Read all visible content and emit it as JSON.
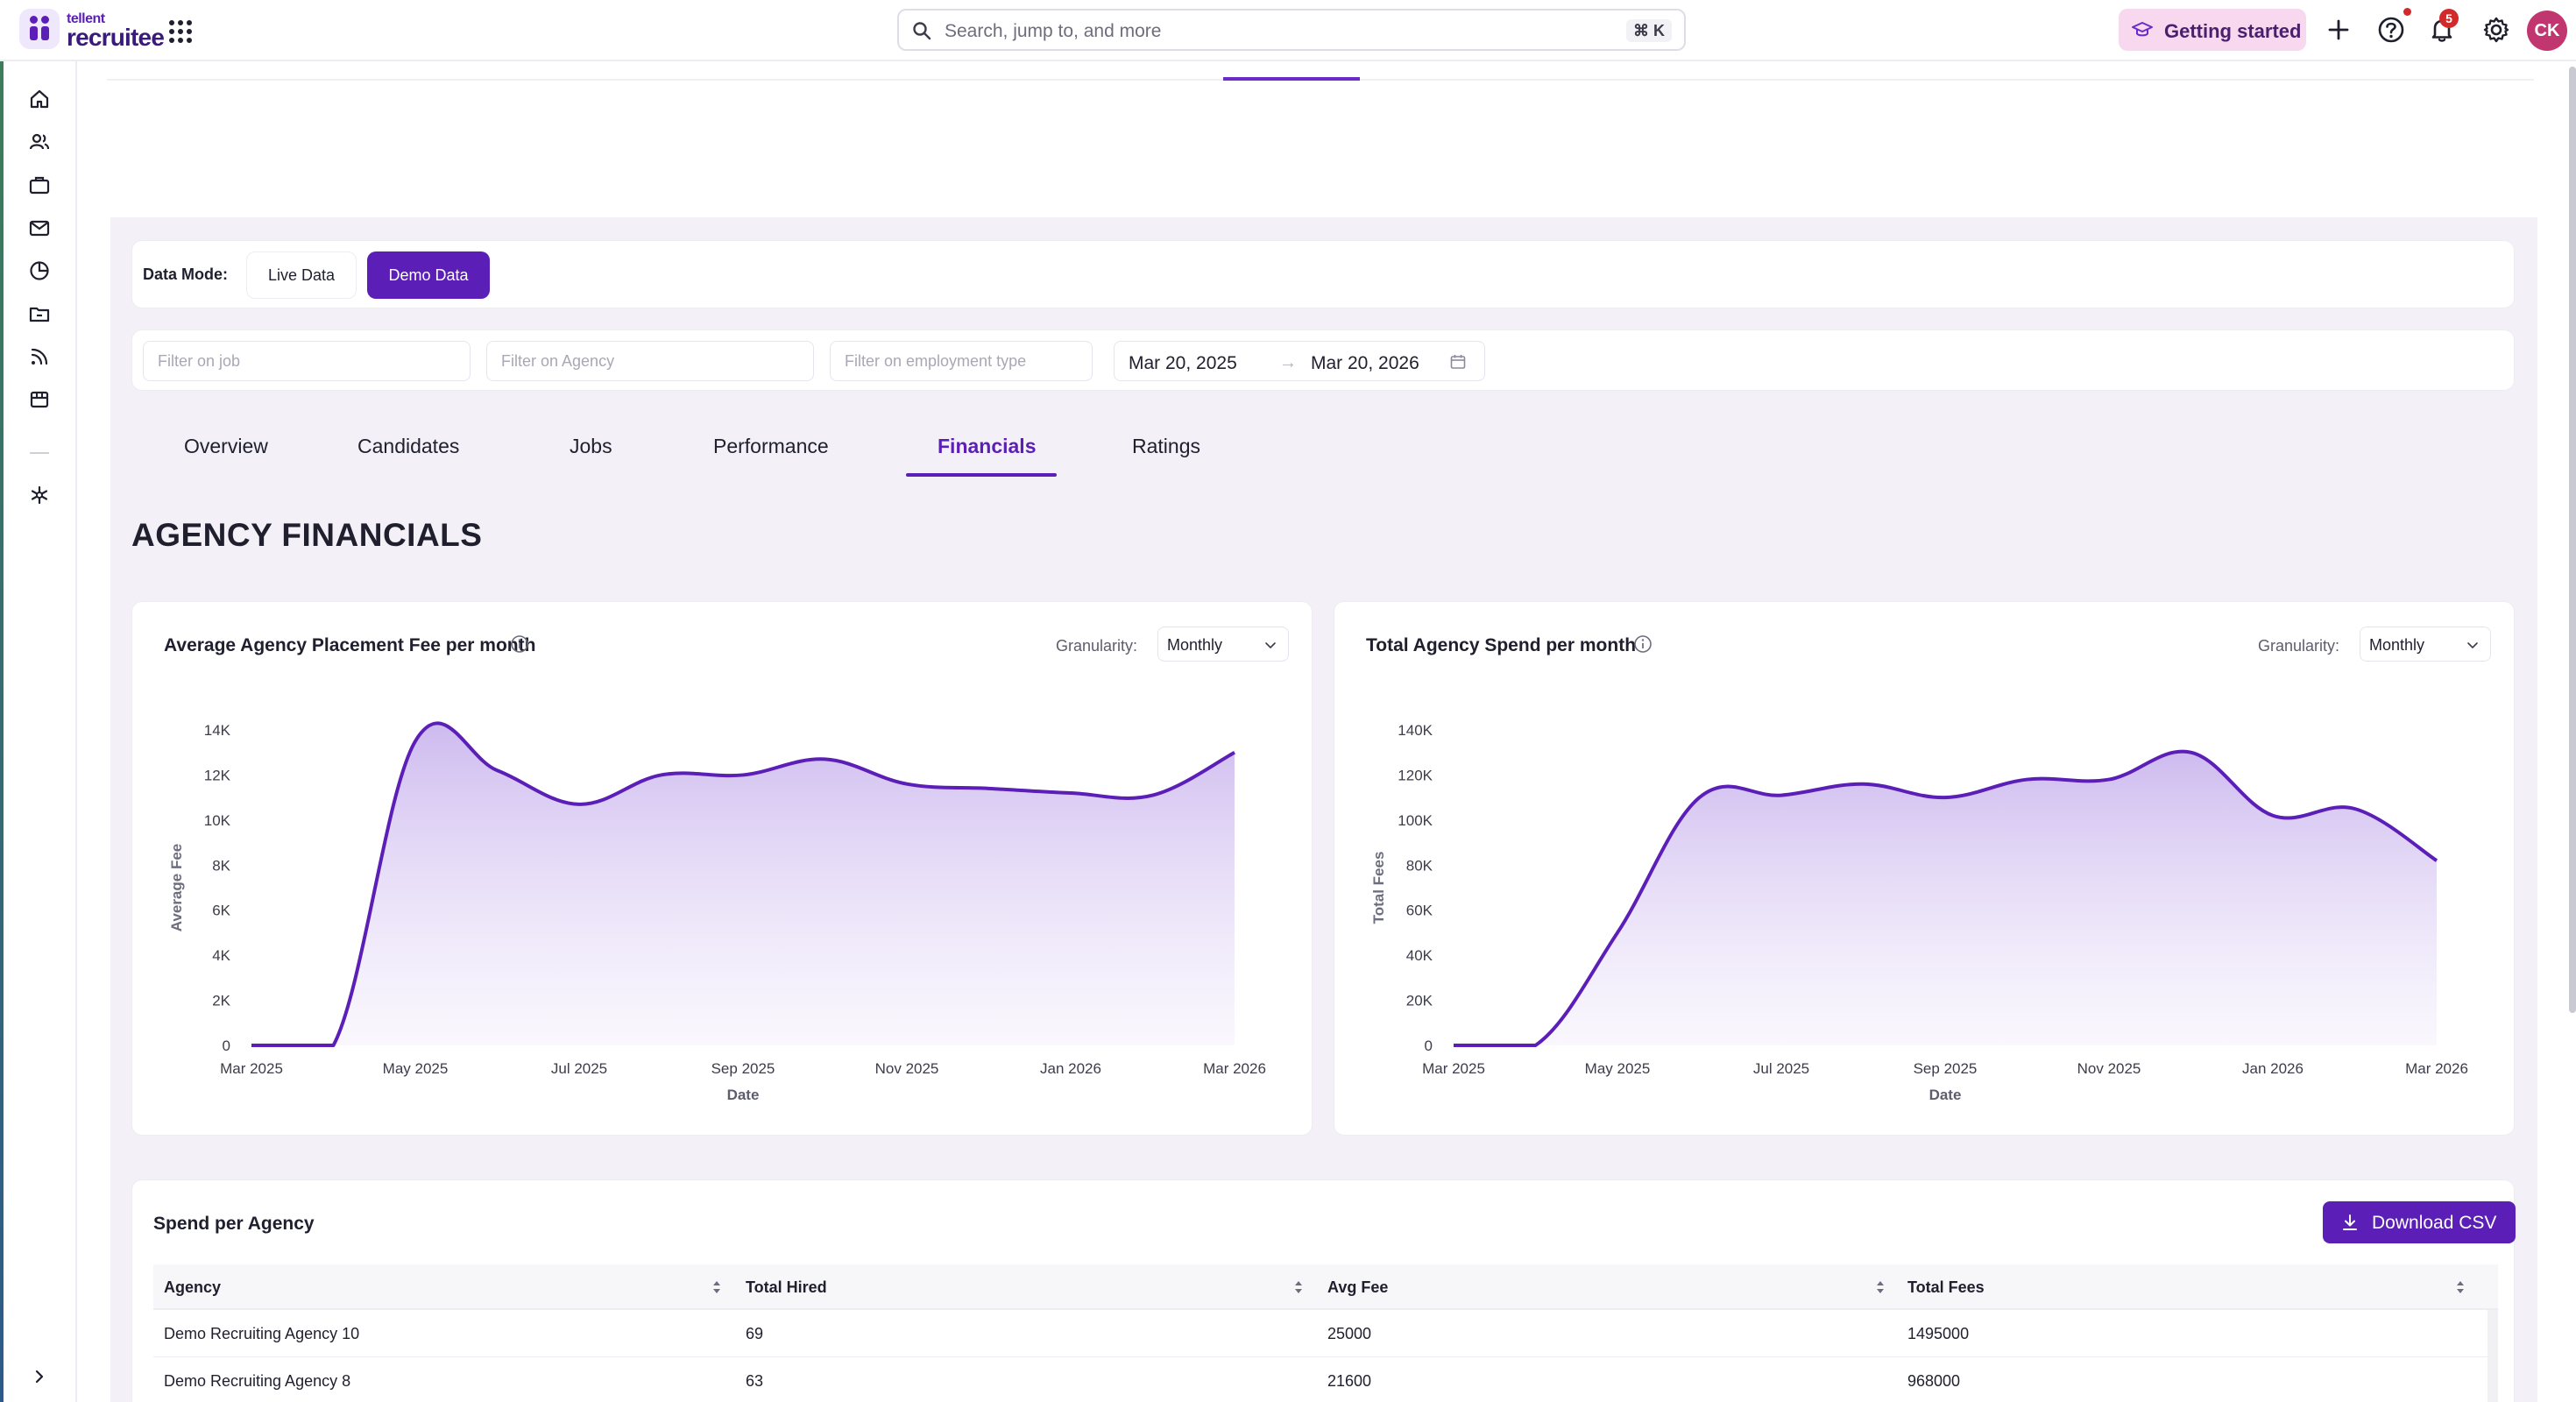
{
  "brand": {
    "top": "tellent",
    "main": "recruitee"
  },
  "search": {
    "placeholder": "Search, jump to, and more",
    "shortcut": "⌘ K"
  },
  "header": {
    "getting_started": "Getting started",
    "notifications_count": "5",
    "avatar_initials": "CK"
  },
  "data_mode": {
    "label": "Data Mode:",
    "live": "Live Data",
    "demo": "Demo Data",
    "selected": "Demo Data"
  },
  "filters": {
    "job_placeholder": "Filter on job",
    "agency_placeholder": "Filter on Agency",
    "employment_placeholder": "Filter on employment type",
    "date_from": "Mar 20, 2025",
    "date_to": "Mar 20, 2026"
  },
  "tabs": [
    {
      "label": "Overview"
    },
    {
      "label": "Candidates"
    },
    {
      "label": "Jobs"
    },
    {
      "label": "Performance"
    },
    {
      "label": "Financials"
    },
    {
      "label": "Ratings"
    }
  ],
  "active_tab": "Financials",
  "section_title": "AGENCY FINANCIALS",
  "charts": {
    "granularity_label": "Granularity:",
    "granularity_value": "Monthly"
  },
  "chart_data": [
    {
      "type": "area",
      "title": "Average Agency Placement Fee per month",
      "xlabel": "Date",
      "ylabel": "Average Fee",
      "x_ticks": [
        "Mar 2025",
        "May 2025",
        "Jul 2025",
        "Sep 2025",
        "Nov 2025",
        "Jan 2026",
        "Mar 2026"
      ],
      "y_ticks": [
        "0",
        "2K",
        "4K",
        "6K",
        "8K",
        "10K",
        "12K",
        "14K"
      ],
      "ylim": [
        0,
        14000
      ],
      "x": [
        "2025-03",
        "2025-04",
        "2025-05",
        "2025-06",
        "2025-07",
        "2025-08",
        "2025-09",
        "2025-10",
        "2025-11",
        "2025-12",
        "2026-01",
        "2026-02",
        "2026-03"
      ],
      "values": [
        0,
        0,
        13500,
        12200,
        10700,
        12000,
        12000,
        12700,
        11600,
        11400,
        11200,
        11100,
        13000
      ],
      "color": "#5b1fb8",
      "grid": false,
      "legend": "none"
    },
    {
      "type": "area",
      "title": "Total Agency Spend per month",
      "xlabel": "Date",
      "ylabel": "Total Fees",
      "x_ticks": [
        "Mar 2025",
        "May 2025",
        "Jul 2025",
        "Sep 2025",
        "Nov 2025",
        "Jan 2026",
        "Mar 2026"
      ],
      "y_ticks": [
        "0",
        "20K",
        "40K",
        "60K",
        "80K",
        "100K",
        "120K",
        "140K"
      ],
      "ylim": [
        0,
        140000
      ],
      "x": [
        "2025-03",
        "2025-04",
        "2025-05",
        "2025-06",
        "2025-07",
        "2025-08",
        "2025-09",
        "2025-10",
        "2025-11",
        "2025-12",
        "2026-01",
        "2026-02",
        "2026-03"
      ],
      "values": [
        0,
        0,
        50000,
        110000,
        111000,
        116000,
        110000,
        118000,
        118000,
        130000,
        102000,
        105000,
        82000
      ],
      "color": "#5b1fb8",
      "grid": false,
      "legend": "none"
    }
  ],
  "spend_table": {
    "title": "Spend per Agency",
    "download_label": "Download CSV",
    "columns": [
      "Agency",
      "Total Hired",
      "Avg Fee",
      "Total Fees"
    ],
    "rows": [
      [
        "Demo Recruiting Agency 10",
        "69",
        "25000",
        "1495000"
      ],
      [
        "Demo Recruiting Agency 8",
        "63",
        "21600",
        "968000"
      ]
    ]
  }
}
